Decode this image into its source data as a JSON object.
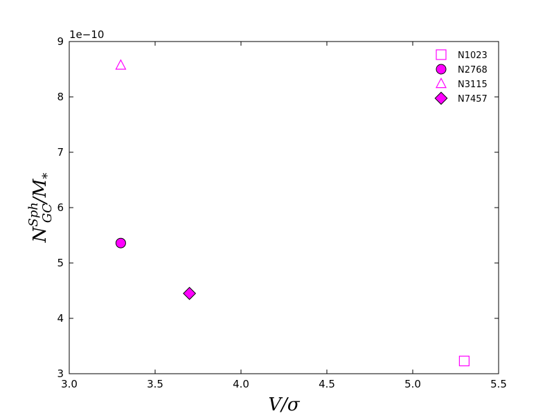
{
  "chart_data": {
    "type": "scatter",
    "xlabel_main": "V/",
    "xlabel_sigma": "σ",
    "ylabel_main": "N",
    "ylabel_sup": "Sph",
    "ylabel_sub": "GC",
    "ylabel_rest": "/M",
    "ylabel_rest_sub": "*",
    "offset_text": "1e−10",
    "xlim": [
      3.0,
      5.5
    ],
    "ylim": [
      3,
      9
    ],
    "xticks": [
      "3.0",
      "3.5",
      "4.0",
      "4.5",
      "5.0",
      "5.5"
    ],
    "yticks": [
      "3",
      "4",
      "5",
      "6",
      "7",
      "8",
      "9"
    ],
    "legend_position": "top-right",
    "marker_color": "#ff00ff",
    "series": [
      {
        "name": "N1023",
        "marker": "square",
        "filled": false,
        "x": 5.3,
        "y": 3.23
      },
      {
        "name": "N2768",
        "marker": "circle",
        "filled": true,
        "x": 3.3,
        "y": 5.36
      },
      {
        "name": "N3115",
        "marker": "triangle",
        "filled": false,
        "x": 3.3,
        "y": 8.57
      },
      {
        "name": "N7457",
        "marker": "diamond",
        "filled": true,
        "x": 3.7,
        "y": 4.45
      }
    ]
  }
}
